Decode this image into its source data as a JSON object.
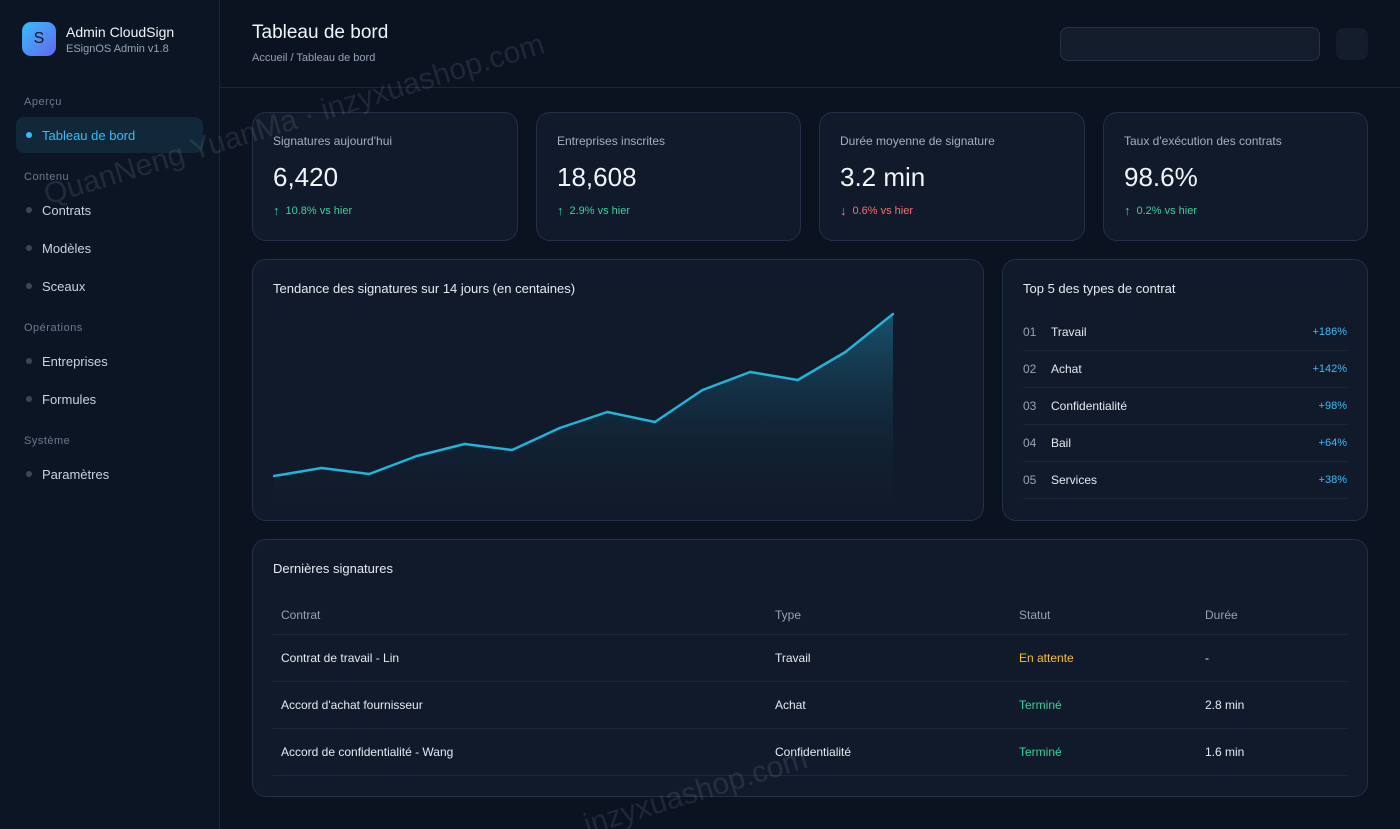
{
  "sidebar": {
    "logo_letter": "S",
    "app_name": "Admin CloudSign",
    "version": "ESignOS Admin v1.8",
    "sections": [
      {
        "label": "Aperçu",
        "items": [
          {
            "label": "Tableau de bord",
            "active": true
          }
        ]
      },
      {
        "label": "Contenu",
        "items": [
          {
            "label": "Contrats"
          },
          {
            "label": "Modèles"
          },
          {
            "label": "Sceaux"
          }
        ]
      },
      {
        "label": "Opérations",
        "items": [
          {
            "label": "Entreprises"
          },
          {
            "label": "Formules"
          }
        ]
      },
      {
        "label": "Système",
        "items": [
          {
            "label": "Paramètres"
          }
        ]
      }
    ]
  },
  "header": {
    "title": "Tableau de bord",
    "breadcrumb": "Accueil / Tableau de bord",
    "search_placeholder": ""
  },
  "kpis": [
    {
      "label": "Signatures aujourd'hui",
      "value": "6,420",
      "delta": "10.8% vs hier",
      "direction": "up"
    },
    {
      "label": "Entreprises inscrites",
      "value": "18,608",
      "delta": "2.9% vs hier",
      "direction": "up"
    },
    {
      "label": "Durée moyenne de signature",
      "value": "3.2 min",
      "delta": "0.6% vs hier",
      "direction": "down"
    },
    {
      "label": "Taux d'exécution des contrats",
      "value": "98.6%",
      "delta": "0.2% vs hier",
      "direction": "up"
    }
  ],
  "trend": {
    "title": "Tendance des signatures sur 14 jours (en centaines)"
  },
  "chart_data": {
    "type": "area",
    "title": "Tendance des signatures sur 14 jours (en centaines)",
    "x": [
      1,
      2,
      3,
      4,
      5,
      6,
      7,
      8,
      9,
      10,
      11,
      12,
      13,
      14
    ],
    "values": [
      42,
      46,
      43,
      52,
      58,
      55,
      66,
      74,
      69,
      85,
      94,
      90,
      104,
      123
    ],
    "ylim": [
      30,
      130
    ],
    "grid": false,
    "line_color": "#22b4d6"
  },
  "top5": {
    "title": "Top 5 des types de contrat",
    "rows": [
      {
        "rank": "01",
        "name": "Travail",
        "pct": "+186%"
      },
      {
        "rank": "02",
        "name": "Achat",
        "pct": "+142%"
      },
      {
        "rank": "03",
        "name": "Confidentialité",
        "pct": "+98%"
      },
      {
        "rank": "04",
        "name": "Bail",
        "pct": "+64%"
      },
      {
        "rank": "05",
        "name": "Services",
        "pct": "+38%"
      }
    ]
  },
  "recent": {
    "title": "Dernières signatures",
    "columns": [
      "Contrat",
      "Type",
      "Statut",
      "Durée"
    ],
    "rows": [
      {
        "contract": "Contrat de travail - Lin",
        "type": "Travail",
        "status": "En attente",
        "status_kind": "pending",
        "duration": "-"
      },
      {
        "contract": "Accord d'achat fournisseur",
        "type": "Achat",
        "status": "Terminé",
        "status_kind": "done",
        "duration": "2.8 min"
      },
      {
        "contract": "Accord de confidentialité - Wang",
        "type": "Confidentialité",
        "status": "Terminé",
        "status_kind": "done",
        "duration": "1.6 min"
      }
    ]
  },
  "colors": {
    "accent": "#38bdf8",
    "up": "#34d399",
    "down": "#f87171",
    "pending": "#fbbf24"
  },
  "watermarks": [
    "QuanNeng YuanMa · inzyxuashop.com",
    "inzyxuashop.com"
  ]
}
